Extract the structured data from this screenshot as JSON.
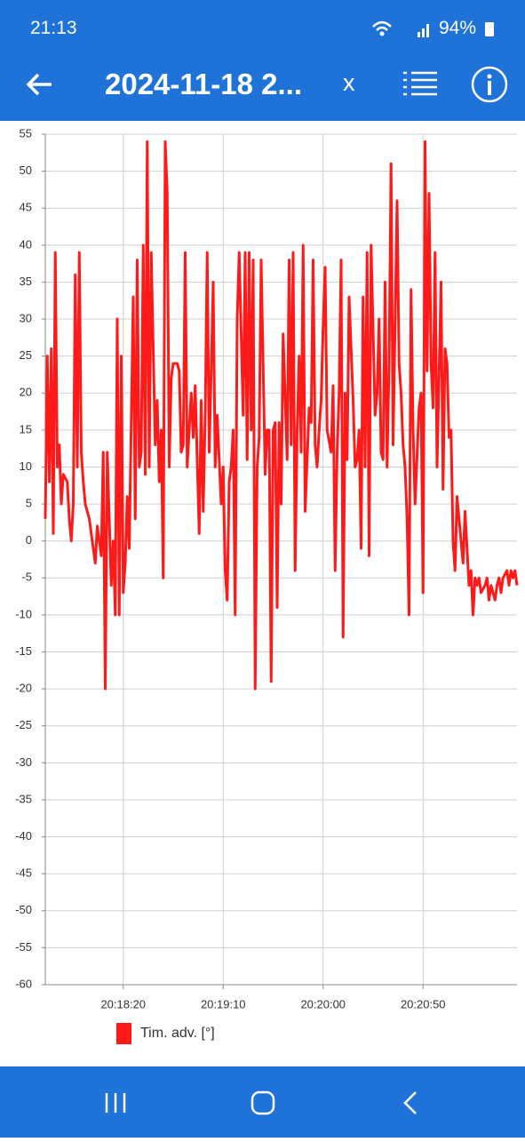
{
  "status_bar": {
    "time": "21:13",
    "battery": "94%"
  },
  "app_bar": {
    "title": "2024-11-18 2...",
    "close": "x"
  },
  "chart_data": {
    "type": "line",
    "x": [
      73061,
      73062,
      73063,
      73064,
      73065,
      73066,
      73067,
      73068,
      73069,
      73070,
      73072,
      73073,
      73074,
      73075,
      73076,
      73077,
      73078,
      73079,
      73080,
      73081,
      73083,
      73084,
      73085,
      73086,
      73087,
      73088,
      73089,
      73090,
      73091,
      73092,
      73094,
      73095,
      73096,
      73097,
      73098,
      73099,
      73100,
      73101,
      73102,
      73103,
      73105,
      73106,
      73107,
      73108,
      73109,
      73110,
      73111,
      73112,
      73113,
      73114,
      73116,
      73117,
      73118,
      73119,
      73120,
      73121,
      73122,
      73123,
      73124,
      73125,
      73127,
      73128,
      73129,
      73130,
      73131,
      73132,
      73133,
      73134,
      73135,
      73136,
      73138,
      73139,
      73140,
      73141,
      73142,
      73143,
      73144,
      73145,
      73146,
      73147,
      73149,
      73150,
      73151,
      73152,
      73153,
      73154,
      73155,
      73156,
      73157,
      73158,
      73160,
      73161,
      73162,
      73163,
      73164,
      73165,
      73166,
      73167,
      73168,
      73169,
      73171,
      73172,
      73173,
      73174,
      73175,
      73176,
      73177,
      73178,
      73179,
      73180,
      73182,
      73183,
      73184,
      73185,
      73186,
      73187,
      73188,
      73189,
      73190,
      73191,
      73193,
      73194,
      73195,
      73196,
      73197,
      73198,
      73199,
      73200,
      73201,
      73202,
      73204,
      73205,
      73206,
      73207,
      73208,
      73209,
      73210,
      73211,
      73212,
      73213,
      73215,
      73216,
      73217,
      73218,
      73219,
      73220,
      73221,
      73222,
      73223,
      73224,
      73226,
      73227,
      73228,
      73229,
      73230,
      73231,
      73232,
      73233,
      73234,
      73235,
      73237,
      73238,
      73239,
      73240,
      73241,
      73242,
      73243,
      73244,
      73245,
      73246,
      73248,
      73249,
      73250,
      73251,
      73252,
      73253,
      73254,
      73255,
      73256,
      73257,
      73259,
      73260,
      73261,
      73262,
      73263,
      73264,
      73265,
      73266,
      73267,
      73268,
      73270,
      73271,
      73272,
      73273,
      73274,
      73275,
      73276,
      73277,
      73278,
      73279,
      73281,
      73282,
      73283,
      73284,
      73285,
      73286,
      73287,
      73288,
      73289,
      73290,
      73292,
      73293,
      73294,
      73295,
      73296,
      73297
    ],
    "series": [
      {
        "name": "Tim. adv. [°]",
        "color": "#ff1a1a",
        "values": [
          3,
          25,
          8,
          26,
          1,
          39,
          10,
          13,
          5,
          9,
          8,
          3,
          0,
          5,
          36,
          10,
          39,
          12,
          8,
          5,
          3,
          1,
          -1,
          -3,
          2,
          0,
          -2,
          12,
          -20,
          12,
          -6,
          0,
          -10,
          30,
          -10,
          25,
          -7,
          -3,
          6,
          -1,
          33,
          3,
          38,
          10,
          12,
          40,
          9,
          54,
          10,
          39,
          13,
          19,
          8,
          15,
          -5,
          54,
          47,
          10,
          22,
          24,
          24,
          23,
          12,
          13,
          39,
          10,
          15,
          20,
          14,
          21,
          1,
          19,
          4,
          17,
          39,
          12,
          23,
          35,
          10,
          17,
          5,
          10,
          -4,
          -8,
          8,
          10,
          15,
          -10,
          30,
          39,
          17,
          39,
          11,
          39,
          15,
          38,
          -20,
          10,
          14,
          38,
          9,
          15,
          15,
          -19,
          15,
          16,
          -9,
          16,
          5,
          28,
          11,
          38,
          13,
          39,
          -4,
          15,
          25,
          12,
          40,
          4,
          18,
          16,
          38,
          13,
          10,
          15,
          19,
          29,
          37,
          15,
          12,
          21,
          -4,
          12,
          20,
          38,
          -13,
          20,
          11,
          33,
          19,
          10,
          11,
          15,
          -1,
          33,
          10,
          39,
          -2,
          40,
          17,
          20,
          30,
          12,
          11,
          35,
          10,
          24,
          51,
          13,
          46,
          24,
          20,
          13,
          10,
          3,
          -10,
          34,
          15,
          5,
          18,
          20,
          -7,
          54,
          23,
          47,
          24,
          18,
          39,
          10,
          35,
          7,
          26,
          24,
          14,
          15,
          0,
          -4,
          6,
          3,
          -3,
          4,
          -1,
          -6,
          -4,
          -10,
          -5,
          -6,
          -5,
          -7,
          -6,
          -5,
          -8,
          -6,
          -7,
          -8,
          -6,
          -5,
          -7,
          -5,
          -4,
          -6,
          -4,
          -5,
          -4,
          -6
        ]
      }
    ],
    "xlim": [
      73061,
      73297
    ],
    "xticks": [
      {
        "value": 73100,
        "label": "20:18:20"
      },
      {
        "value": 73150,
        "label": "20:19:10"
      },
      {
        "value": 73200,
        "label": "20:20:00"
      },
      {
        "value": 73250,
        "label": "20:20:50"
      }
    ],
    "ylim": [
      -60,
      55
    ],
    "yticks": [
      -60,
      -55,
      -50,
      -45,
      -40,
      -35,
      -30,
      -25,
      -20,
      -15,
      -10,
      -5,
      0,
      5,
      10,
      15,
      20,
      25,
      30,
      35,
      40,
      45,
      50,
      55
    ],
    "grid": true
  }
}
